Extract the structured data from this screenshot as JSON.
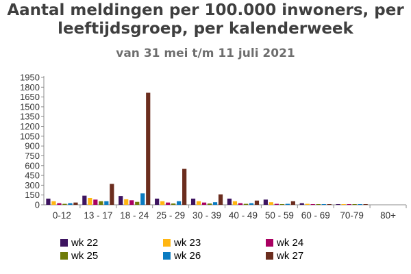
{
  "chart_data": {
    "type": "bar",
    "title_line1": "Aantal meldingen per 100.000 inwoners, per",
    "title_line2": "leeftijdsgroep, per kalenderweek",
    "subtitle": "van 31 mei t/m 11 juli 2021",
    "categories": [
      "0-12",
      "13 - 17",
      "18 - 24",
      "25 - 29",
      "30 - 39",
      "40 - 49",
      "50 - 59",
      "60 - 69",
      "70-79",
      "80+"
    ],
    "yticks": [
      "0",
      "150",
      "300",
      "450",
      "600",
      "750",
      "900",
      "1050",
      "1200",
      "1350",
      "1500",
      "1650",
      "1800",
      "1950"
    ],
    "ylim": [
      0,
      1950
    ],
    "grid": false,
    "legend_position": "bottom",
    "series": [
      {
        "name": "wk 22",
        "color": "#3d1460",
        "values": [
          95,
          140,
          135,
          95,
          95,
          95,
          80,
          25,
          10,
          0
        ]
      },
      {
        "name": "wk 23",
        "color": "#ffb612",
        "values": [
          55,
          105,
          85,
          55,
          55,
          55,
          40,
          15,
          5,
          0
        ]
      },
      {
        "name": "wk 24",
        "color": "#a90061",
        "values": [
          25,
          80,
          70,
          35,
          35,
          25,
          15,
          5,
          2,
          0
        ]
      },
      {
        "name": "wk 25",
        "color": "#6e7b08",
        "values": [
          15,
          55,
          45,
          20,
          20,
          15,
          10,
          5,
          2,
          0
        ]
      },
      {
        "name": "wk 26",
        "color": "#0a7bc1",
        "values": [
          25,
          55,
          175,
          55,
          40,
          25,
          15,
          5,
          2,
          0
        ]
      },
      {
        "name": "wk 27",
        "color": "#6b2d1e",
        "values": [
          35,
          320,
          1715,
          550,
          160,
          65,
          55,
          10,
          3,
          0
        ]
      }
    ]
  }
}
